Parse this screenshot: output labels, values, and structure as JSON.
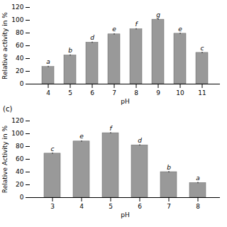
{
  "chart_data": [
    {
      "type": "bar",
      "categories": [
        "4",
        "5",
        "6",
        "7",
        "8",
        "9",
        "10",
        "11"
      ],
      "values": [
        27,
        45,
        65,
        78,
        86,
        101,
        79,
        49
      ],
      "error_bars": [
        1.0,
        1.0,
        1.0,
        1.0,
        1.0,
        1.0,
        1.0,
        1.0
      ],
      "annotations": [
        "a",
        "b",
        "d",
        "e",
        "f",
        "g",
        "e",
        "c"
      ],
      "xlabel": "pH",
      "ylabel": "Relative activity in %",
      "ylim": [
        0,
        120
      ],
      "yticks": [
        0,
        20,
        40,
        60,
        80,
        100,
        120
      ],
      "color": "#999999",
      "grid": false
    },
    {
      "type": "bar",
      "title": "(c)",
      "categories": [
        "3",
        "4",
        "5",
        "6",
        "7",
        "8"
      ],
      "values": [
        69,
        88,
        101,
        82,
        40,
        23
      ],
      "error_bars": [
        1.0,
        1.0,
        1.0,
        1.0,
        1.0,
        1.0
      ],
      "annotations": [
        "c",
        "e",
        "f",
        "d",
        "b",
        "a"
      ],
      "xlabel": "pH",
      "ylabel": "Relative Activity in %",
      "ylim": [
        0,
        120
      ],
      "yticks": [
        0,
        20,
        40,
        60,
        80,
        100,
        120
      ],
      "color": "#999999",
      "grid": false
    }
  ]
}
